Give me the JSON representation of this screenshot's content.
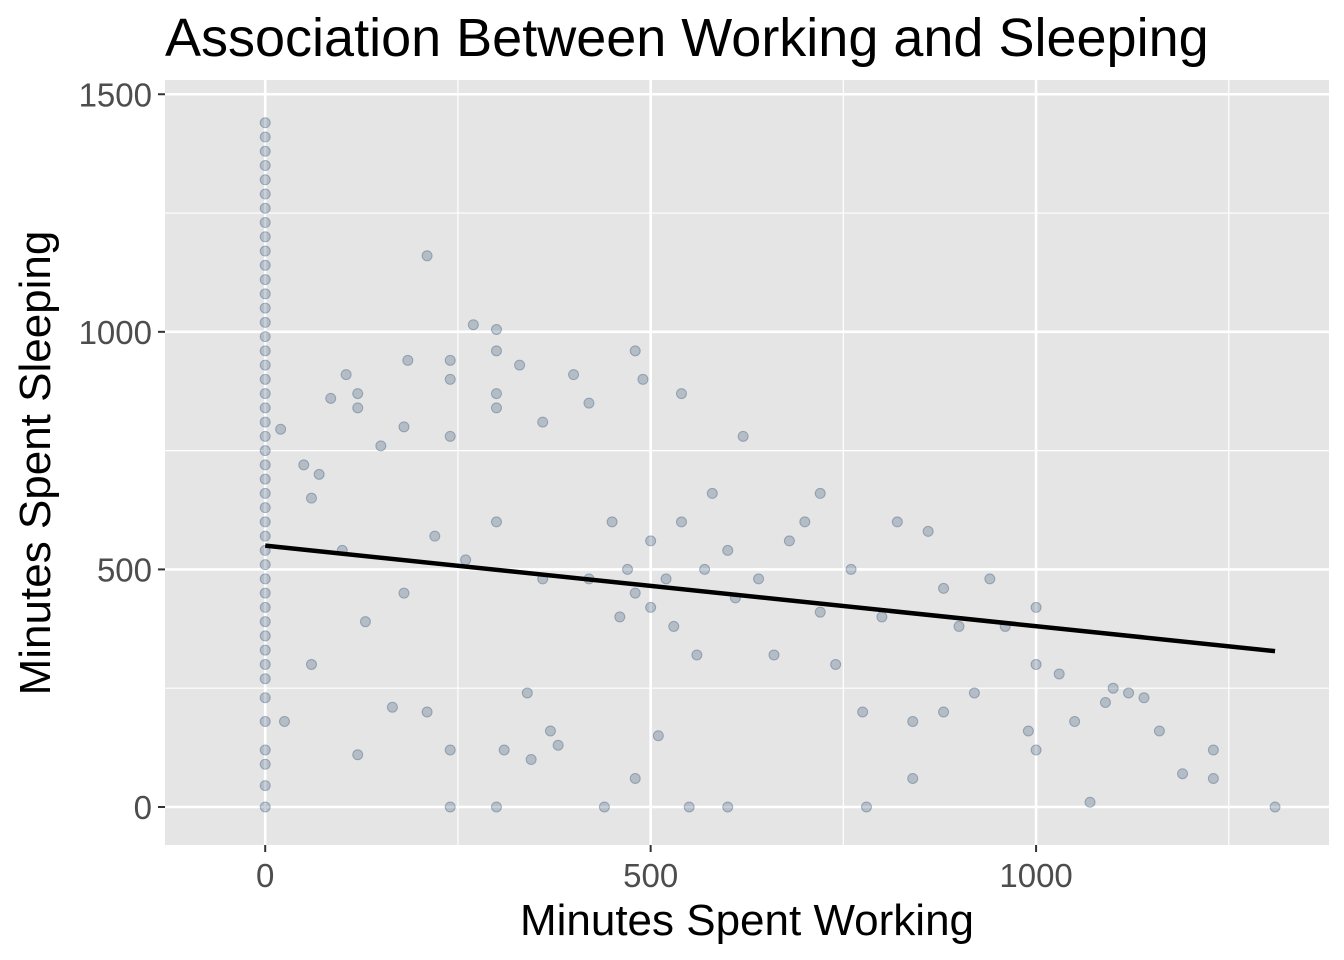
{
  "chart_data": {
    "type": "scatter",
    "title": "Association Between Working and Sleeping",
    "xlabel": "Minutes Spent Working",
    "ylabel": "Minutes Spent Sleeping",
    "xlim": [
      -130,
      1380
    ],
    "ylim": [
      -80,
      1530
    ],
    "x_ticks": [
      0,
      500,
      1000
    ],
    "y_ticks": [
      0,
      500,
      1000,
      1500
    ],
    "grid": true,
    "point_color": "#24466b",
    "point_opacity": 0.25,
    "line_color": "#000000",
    "panel_background": "#e5e5e5",
    "zero_work_points": [
      {
        "x": 0,
        "y": 0
      },
      {
        "x": 0,
        "y": 45
      },
      {
        "x": 0,
        "y": 90
      },
      {
        "x": 0,
        "y": 120
      },
      {
        "x": 0,
        "y": 180
      },
      {
        "x": 0,
        "y": 230
      },
      {
        "x": 0,
        "y": 270
      },
      {
        "x": 0,
        "y": 300
      },
      {
        "x": 0,
        "y": 330
      },
      {
        "x": 0,
        "y": 360
      },
      {
        "x": 0,
        "y": 390
      },
      {
        "x": 0,
        "y": 420
      },
      {
        "x": 0,
        "y": 450
      },
      {
        "x": 0,
        "y": 480
      },
      {
        "x": 0,
        "y": 510
      },
      {
        "x": 0,
        "y": 540
      },
      {
        "x": 0,
        "y": 570
      },
      {
        "x": 0,
        "y": 600
      },
      {
        "x": 0,
        "y": 630
      },
      {
        "x": 0,
        "y": 660
      },
      {
        "x": 0,
        "y": 690
      },
      {
        "x": 0,
        "y": 720
      },
      {
        "x": 0,
        "y": 750
      },
      {
        "x": 0,
        "y": 780
      },
      {
        "x": 0,
        "y": 810
      },
      {
        "x": 0,
        "y": 840
      },
      {
        "x": 0,
        "y": 870
      },
      {
        "x": 0,
        "y": 900
      },
      {
        "x": 0,
        "y": 930
      },
      {
        "x": 0,
        "y": 960
      },
      {
        "x": 0,
        "y": 990
      },
      {
        "x": 0,
        "y": 1020
      },
      {
        "x": 0,
        "y": 1050
      },
      {
        "x": 0,
        "y": 1080
      },
      {
        "x": 0,
        "y": 1110
      },
      {
        "x": 0,
        "y": 1140
      },
      {
        "x": 0,
        "y": 1170
      },
      {
        "x": 0,
        "y": 1200
      },
      {
        "x": 0,
        "y": 1230
      },
      {
        "x": 0,
        "y": 1260
      },
      {
        "x": 0,
        "y": 1290
      },
      {
        "x": 0,
        "y": 1320
      },
      {
        "x": 0,
        "y": 1350
      },
      {
        "x": 0,
        "y": 1380
      },
      {
        "x": 0,
        "y": 1410
      },
      {
        "x": 0,
        "y": 1440
      }
    ],
    "points": [
      {
        "x": 20,
        "y": 795
      },
      {
        "x": 25,
        "y": 180
      },
      {
        "x": 50,
        "y": 720
      },
      {
        "x": 60,
        "y": 650
      },
      {
        "x": 60,
        "y": 300
      },
      {
        "x": 70,
        "y": 700
      },
      {
        "x": 85,
        "y": 860
      },
      {
        "x": 100,
        "y": 540
      },
      {
        "x": 105,
        "y": 910
      },
      {
        "x": 120,
        "y": 110
      },
      {
        "x": 120,
        "y": 840
      },
      {
        "x": 120,
        "y": 870
      },
      {
        "x": 130,
        "y": 390
      },
      {
        "x": 150,
        "y": 760
      },
      {
        "x": 165,
        "y": 210
      },
      {
        "x": 180,
        "y": 450
      },
      {
        "x": 180,
        "y": 800
      },
      {
        "x": 185,
        "y": 940
      },
      {
        "x": 210,
        "y": 1160
      },
      {
        "x": 210,
        "y": 200
      },
      {
        "x": 220,
        "y": 570
      },
      {
        "x": 240,
        "y": 0
      },
      {
        "x": 240,
        "y": 780
      },
      {
        "x": 240,
        "y": 120
      },
      {
        "x": 240,
        "y": 940
      },
      {
        "x": 240,
        "y": 900
      },
      {
        "x": 260,
        "y": 520
      },
      {
        "x": 270,
        "y": 1015
      },
      {
        "x": 300,
        "y": 1005
      },
      {
        "x": 300,
        "y": 960
      },
      {
        "x": 300,
        "y": 870
      },
      {
        "x": 300,
        "y": 840
      },
      {
        "x": 300,
        "y": 0
      },
      {
        "x": 300,
        "y": 600
      },
      {
        "x": 310,
        "y": 120
      },
      {
        "x": 330,
        "y": 930
      },
      {
        "x": 340,
        "y": 240
      },
      {
        "x": 345,
        "y": 100
      },
      {
        "x": 360,
        "y": 810
      },
      {
        "x": 360,
        "y": 480
      },
      {
        "x": 370,
        "y": 160
      },
      {
        "x": 380,
        "y": 130
      },
      {
        "x": 400,
        "y": 910
      },
      {
        "x": 420,
        "y": 850
      },
      {
        "x": 420,
        "y": 480
      },
      {
        "x": 440,
        "y": 0
      },
      {
        "x": 450,
        "y": 600
      },
      {
        "x": 460,
        "y": 400
      },
      {
        "x": 470,
        "y": 500
      },
      {
        "x": 480,
        "y": 960
      },
      {
        "x": 480,
        "y": 450
      },
      {
        "x": 480,
        "y": 60
      },
      {
        "x": 490,
        "y": 900
      },
      {
        "x": 500,
        "y": 560
      },
      {
        "x": 500,
        "y": 420
      },
      {
        "x": 510,
        "y": 150
      },
      {
        "x": 520,
        "y": 480
      },
      {
        "x": 530,
        "y": 380
      },
      {
        "x": 540,
        "y": 870
      },
      {
        "x": 540,
        "y": 600
      },
      {
        "x": 550,
        "y": 0
      },
      {
        "x": 560,
        "y": 320
      },
      {
        "x": 570,
        "y": 500
      },
      {
        "x": 580,
        "y": 660
      },
      {
        "x": 600,
        "y": 540
      },
      {
        "x": 600,
        "y": 0
      },
      {
        "x": 610,
        "y": 440
      },
      {
        "x": 620,
        "y": 780
      },
      {
        "x": 640,
        "y": 480
      },
      {
        "x": 660,
        "y": 320
      },
      {
        "x": 680,
        "y": 560
      },
      {
        "x": 700,
        "y": 600
      },
      {
        "x": 720,
        "y": 660
      },
      {
        "x": 720,
        "y": 410
      },
      {
        "x": 740,
        "y": 300
      },
      {
        "x": 760,
        "y": 500
      },
      {
        "x": 775,
        "y": 200
      },
      {
        "x": 780,
        "y": 0
      },
      {
        "x": 800,
        "y": 400
      },
      {
        "x": 820,
        "y": 600
      },
      {
        "x": 840,
        "y": 180
      },
      {
        "x": 840,
        "y": 60
      },
      {
        "x": 860,
        "y": 580
      },
      {
        "x": 880,
        "y": 460
      },
      {
        "x": 880,
        "y": 200
      },
      {
        "x": 900,
        "y": 380
      },
      {
        "x": 920,
        "y": 240
      },
      {
        "x": 940,
        "y": 480
      },
      {
        "x": 960,
        "y": 380
      },
      {
        "x": 990,
        "y": 160
      },
      {
        "x": 1000,
        "y": 120
      },
      {
        "x": 1000,
        "y": 420
      },
      {
        "x": 1000,
        "y": 300
      },
      {
        "x": 1030,
        "y": 280
      },
      {
        "x": 1050,
        "y": 180
      },
      {
        "x": 1070,
        "y": 10
      },
      {
        "x": 1090,
        "y": 220
      },
      {
        "x": 1100,
        "y": 250
      },
      {
        "x": 1120,
        "y": 240
      },
      {
        "x": 1140,
        "y": 230
      },
      {
        "x": 1160,
        "y": 160
      },
      {
        "x": 1190,
        "y": 70
      },
      {
        "x": 1230,
        "y": 120
      },
      {
        "x": 1230,
        "y": 60
      },
      {
        "x": 1310,
        "y": 0
      }
    ],
    "regression_line": {
      "x": [
        0,
        1310
      ],
      "y": [
        550,
        328
      ]
    }
  }
}
